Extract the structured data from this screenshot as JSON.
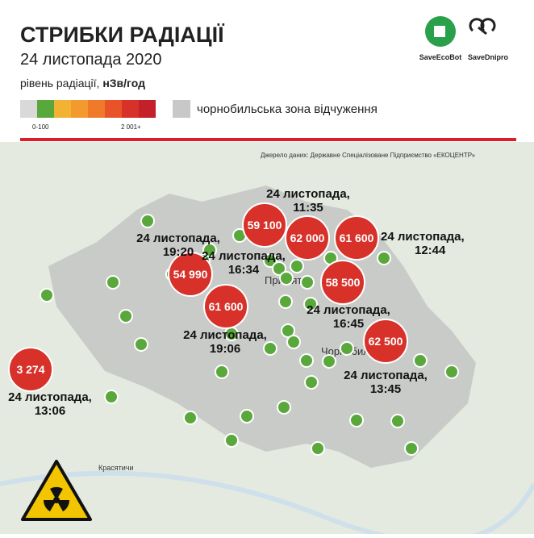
{
  "header": {
    "title": "СТРИБКИ РАДІАЦІЇ",
    "subtitle": "24 листопада 2020",
    "unit_prefix": "рівень радіації, ",
    "unit": "нЗв/год"
  },
  "legend": {
    "min_label": "0-100",
    "max_label": "2 001+",
    "zone_label": "чорнобильська зона відчуження"
  },
  "logos": [
    "SaveEcoBot",
    "SaveDnipro"
  ],
  "source": "Джерело даних: Державне Спеціалізоване Підприємство «ЕКОЦЕНТР»",
  "places": [
    "Прип'ять",
    "Чорнобиль",
    "Красятичи"
  ],
  "markers": [
    {
      "value": "3 274",
      "date": "24 листопада,",
      "time": "13:06"
    },
    {
      "value": "54 990",
      "date": "24 листопада,",
      "time": "19:20"
    },
    {
      "value": "59 100",
      "date": "24 листопада,",
      "time": "16:34"
    },
    {
      "value": "62 000",
      "date": "24 листопада,",
      "time": "11:35"
    },
    {
      "value": "61 600",
      "date": "24 листопада,",
      "time": "12:44"
    },
    {
      "value": "61 600",
      "date": "24 листопада,",
      "time": "19:06"
    },
    {
      "value": "58 500",
      "date": "24 листопада,",
      "time": "16:45"
    },
    {
      "value": "62 500",
      "date": "24 листопада,",
      "time": "13:45"
    }
  ]
}
